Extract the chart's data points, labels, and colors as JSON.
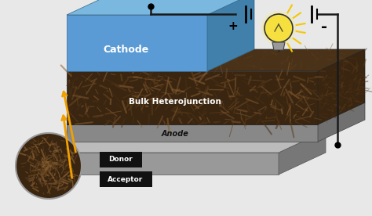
{
  "bg_color": "#e8e8e8",
  "cathode_front": "#5b9bd5",
  "cathode_top": "#7ab8e0",
  "cathode_right": "#4080aa",
  "bhj_dark": "#3a2510",
  "bhj_mid": "#5a3c1a",
  "bhj_light": "#7a5530",
  "anode_front": "#888888",
  "anode_top": "#aaaaaa",
  "anode_right": "#707070",
  "base_front": "#999999",
  "base_top": "#bbbbbb",
  "base_right": "#777777",
  "wire_color": "#1a1a1a",
  "arrow_color": "#f0a000",
  "label_bg": "#111111",
  "cathode_label": "Cathode",
  "bhj_label": "Bulk Heterojunction",
  "anode_label": "Anode",
  "donor_label": "Donor",
  "acceptor_label": "Acceptor"
}
